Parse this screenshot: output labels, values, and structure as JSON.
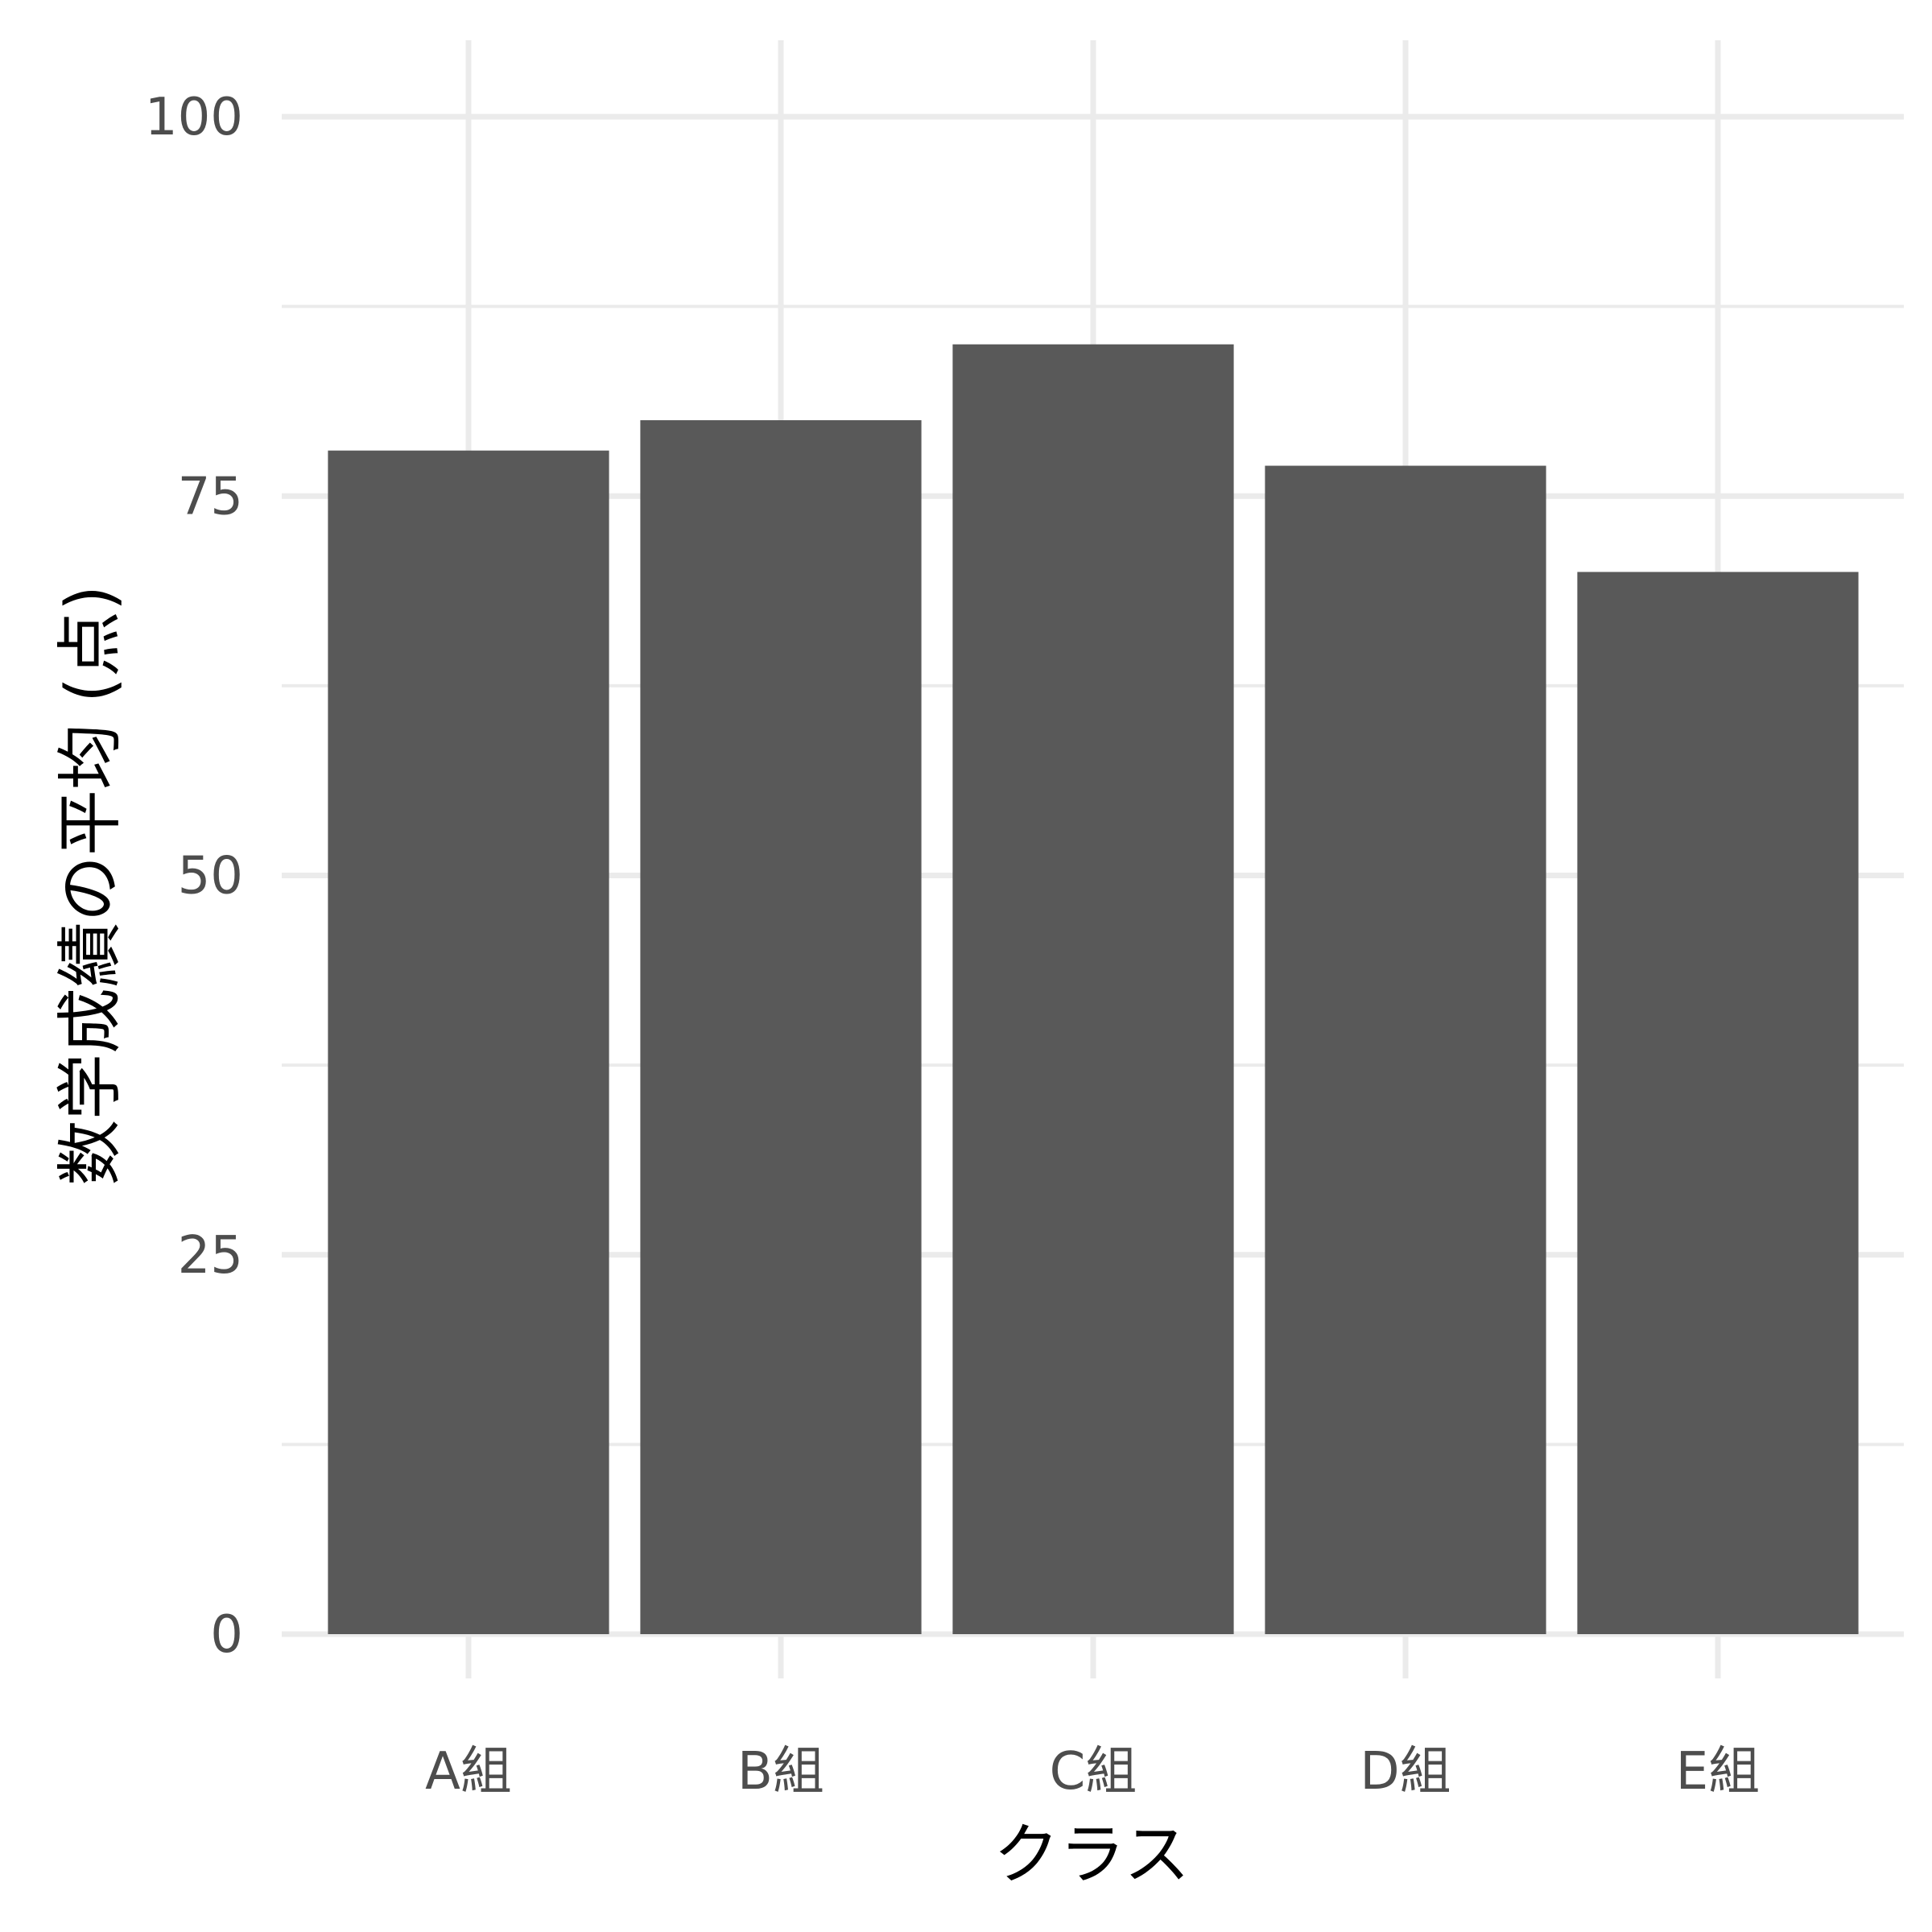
{
  "chart_data": {
    "type": "bar",
    "title": "",
    "xlabel": "クラス",
    "ylabel": "数学成績の平均 (点)",
    "categories": [
      "A組",
      "B組",
      "C組",
      "D組",
      "E組"
    ],
    "values": [
      78,
      80,
      85,
      77,
      70
    ],
    "ylim": [
      0,
      105
    ],
    "yticks": [
      0,
      25,
      50,
      75,
      100
    ],
    "grid": true,
    "bar_color": "#595959",
    "grid_color": "#ebebeb",
    "background": "#ffffff"
  }
}
